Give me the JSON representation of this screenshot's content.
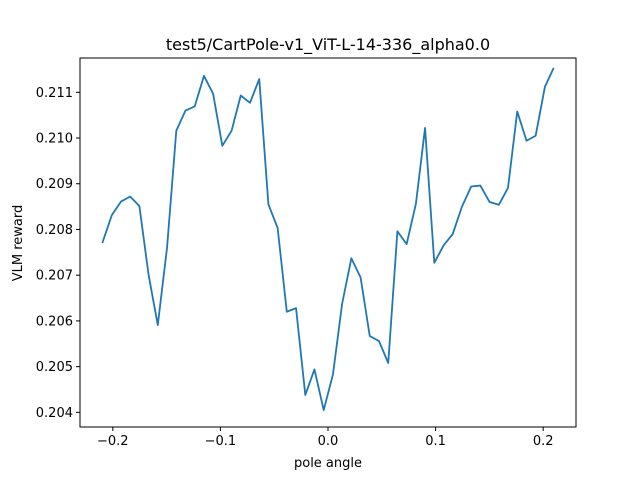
{
  "chart_data": {
    "type": "line",
    "title": "test5/CartPole-v1_ViT-L-14-336_alpha0.0",
    "xlabel": "pole angle",
    "ylabel": "VLM reward",
    "xlim": [
      -0.2305,
      0.2305
    ],
    "ylim": [
      0.20368,
      0.21175
    ],
    "x_ticks": [
      -0.2,
      -0.1,
      0.0,
      0.1,
      0.2
    ],
    "x_tick_labels": [
      "−0.2",
      "−0.1",
      "0.0",
      "0.1",
      "0.2"
    ],
    "y_ticks": [
      0.204,
      0.205,
      0.206,
      0.207,
      0.208,
      0.209,
      0.21,
      0.211
    ],
    "y_tick_labels": [
      "0.204",
      "0.205",
      "0.206",
      "0.207",
      "0.208",
      "0.209",
      "0.210",
      "0.211"
    ],
    "grid": false,
    "legend": "none",
    "series": [
      {
        "color": "#1f77b4",
        "x": [
          -0.2095,
          -0.201,
          -0.1924,
          -0.1839,
          -0.1753,
          -0.1667,
          -0.1582,
          -0.1496,
          -0.141,
          -0.1325,
          -0.1239,
          -0.1153,
          -0.1068,
          -0.0982,
          -0.0896,
          -0.0811,
          -0.0725,
          -0.0639,
          -0.0554,
          -0.0468,
          -0.0383,
          -0.0297,
          -0.0211,
          -0.0126,
          -0.004,
          0.0046,
          0.0131,
          0.0217,
          0.0303,
          0.0388,
          0.0474,
          0.056,
          0.0645,
          0.0731,
          0.0817,
          0.0902,
          0.0988,
          0.1074,
          0.1159,
          0.1245,
          0.1331,
          0.1416,
          0.1502,
          0.1588,
          0.1673,
          0.1759,
          0.1845,
          0.193,
          0.2016,
          0.2095
        ],
        "values": [
          0.20772,
          0.20831,
          0.20861,
          0.20872,
          0.20851,
          0.207,
          0.20591,
          0.2076,
          0.21016,
          0.2106,
          0.21069,
          0.21136,
          0.21097,
          0.20983,
          0.21016,
          0.21093,
          0.21077,
          0.21129,
          0.20855,
          0.20803,
          0.2062,
          0.20628,
          0.20438,
          0.20494,
          0.20405,
          0.20483,
          0.20637,
          0.20737,
          0.20695,
          0.20567,
          0.20556,
          0.20508,
          0.20796,
          0.20768,
          0.20856,
          0.21022,
          0.20727,
          0.20765,
          0.2079,
          0.2085,
          0.20894,
          0.20896,
          0.2086,
          0.20854,
          0.20891,
          0.21058,
          0.20994,
          0.21005,
          0.21112,
          0.21152
        ]
      }
    ]
  }
}
